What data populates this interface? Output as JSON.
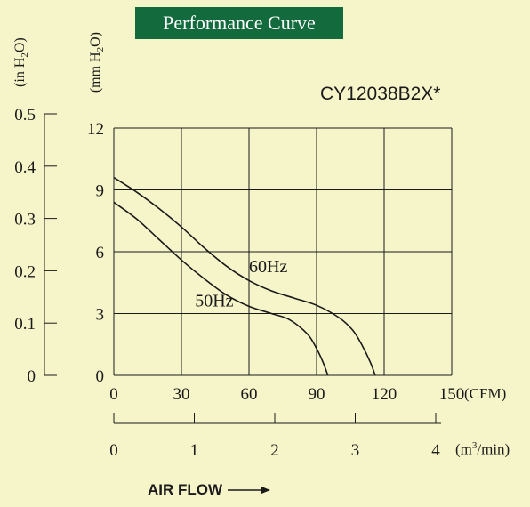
{
  "chart_data": {
    "type": "line",
    "title": "Performance Curve",
    "model": "CY12038B2X*",
    "xlabel": "AIR FLOW",
    "x_unit": "(CFM)",
    "x2_unit_base": "(m",
    "x2_unit_sup": "3",
    "x2_unit_tail": "/min)",
    "y_unit_mm": {
      "base": "(mm H",
      "sub": "2",
      "tail": "O)"
    },
    "y_unit_in": {
      "base": "(in H",
      "sub": "2",
      "tail": "O)"
    },
    "xlim": [
      0,
      150
    ],
    "ylim": [
      0,
      12
    ],
    "x_ticks": [
      "0",
      "30",
      "60",
      "90",
      "120",
      "150"
    ],
    "y_ticks": [
      "0",
      "3",
      "6",
      "9",
      "12"
    ],
    "y2_ticks": [
      "0",
      "0.1",
      "0.2",
      "0.3",
      "0.4",
      "0.5"
    ],
    "x2_ticks": [
      "0",
      "1",
      "2",
      "3",
      "4"
    ],
    "grid": true,
    "series": [
      {
        "name": "60Hz",
        "x": [
          0,
          10,
          20,
          30,
          40,
          50,
          60,
          70,
          80,
          90,
          100,
          106,
          110,
          114,
          116
        ],
        "y": [
          9.6,
          8.9,
          8.1,
          7.2,
          6.2,
          5.3,
          4.6,
          4.1,
          3.75,
          3.4,
          2.8,
          2.2,
          1.5,
          0.6,
          0
        ]
      },
      {
        "name": "50Hz",
        "x": [
          0,
          10,
          20,
          30,
          40,
          50,
          60,
          70,
          78,
          86,
          90,
          93,
          95
        ],
        "y": [
          8.4,
          7.6,
          6.6,
          5.6,
          4.7,
          3.9,
          3.35,
          3.0,
          2.7,
          2.0,
          1.3,
          0.6,
          0
        ]
      }
    ]
  }
}
